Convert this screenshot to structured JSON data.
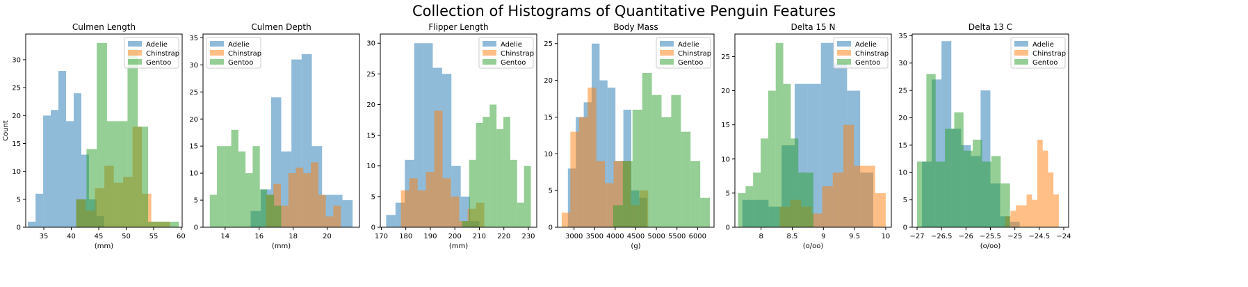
{
  "figure": {
    "suptitle": "Collection of Histograms of Quantitative Penguin Features"
  },
  "colors": {
    "Adelie": "#1f77b4",
    "Chinstrap": "#ff7f0e",
    "Gentoo": "#2ca02c"
  },
  "chart_data": [
    {
      "type": "bar",
      "title": "Culmen Length",
      "xlabel": "(mm)",
      "ylabel": "Count",
      "xlim": [
        31.7,
        60.2
      ],
      "ylim": [
        0,
        34.6
      ],
      "xticks": [
        35,
        40,
        45,
        50,
        55,
        60
      ],
      "yticks": [
        0,
        5,
        10,
        15,
        20,
        25,
        30
      ],
      "legend": "top-right",
      "series": [
        {
          "name": "Adelie",
          "range": [
            32.1,
            46.0
          ],
          "counts": [
            1,
            6,
            20,
            21,
            28,
            19,
            24,
            13,
            5,
            2
          ]
        },
        {
          "name": "Chinstrap",
          "range": [
            40.9,
            58.0
          ],
          "counts": [
            5,
            3,
            7,
            11,
            8,
            9,
            18,
            6,
            1,
            1
          ]
        },
        {
          "name": "Gentoo",
          "range": [
            40.9,
            59.6
          ],
          "counts": [
            5,
            14,
            33,
            19,
            19,
            32,
            18,
            1,
            1,
            1
          ]
        }
      ]
    },
    {
      "type": "bar",
      "title": "Culmen Depth",
      "xlabel": "(mm)",
      "ylabel": "",
      "xlim": [
        12.7,
        21.9
      ],
      "ylim": [
        0,
        35.7
      ],
      "xticks": [
        14,
        16,
        18,
        20
      ],
      "yticks": [
        0,
        5,
        10,
        15,
        20,
        25,
        30,
        35
      ],
      "legend": "top-left",
      "series": [
        {
          "name": "Adelie",
          "range": [
            15.5,
            21.5
          ],
          "counts": [
            3,
            7,
            24,
            14,
            31,
            32,
            15,
            6,
            6,
            5
          ]
        },
        {
          "name": "Chinstrap",
          "range": [
            16.4,
            20.8
          ],
          "counts": [
            6,
            8,
            4,
            10,
            11,
            10,
            12,
            6,
            2,
            4
          ]
        },
        {
          "name": "Gentoo",
          "range": [
            13.1,
            17.3
          ],
          "counts": [
            6,
            15,
            15,
            18,
            14,
            10,
            15,
            7,
            6,
            4
          ]
        }
      ]
    },
    {
      "type": "bar",
      "title": "Flipper Length",
      "xlabel": "(mm)",
      "ylabel": "",
      "xlim": [
        169.6,
        233.4
      ],
      "ylim": [
        0,
        31.5
      ],
      "xticks": [
        170,
        180,
        190,
        200,
        210,
        220,
        230
      ],
      "yticks": [
        0,
        5,
        10,
        15,
        20,
        25,
        30
      ],
      "legend": "top-right",
      "series": [
        {
          "name": "Adelie",
          "range": [
            172,
            210
          ],
          "counts": [
            2,
            4,
            11,
            30,
            30,
            26,
            25,
            10,
            5,
            1
          ]
        },
        {
          "name": "Chinstrap",
          "range": [
            178,
            212
          ],
          "counts": [
            6,
            8,
            6,
            9,
            19,
            8,
            5,
            1,
            3,
            4
          ]
        },
        {
          "name": "Gentoo",
          "range": [
            203,
            231
          ],
          "counts": [
            1,
            11,
            17,
            18,
            20,
            16,
            18,
            11,
            4,
            10
          ]
        }
      ]
    },
    {
      "type": "bar",
      "title": "Body Mass",
      "xlabel": "(g)",
      "ylabel": "",
      "xlim": [
        2600,
        6400
      ],
      "ylim": [
        0,
        26.3
      ],
      "xticks": [
        3000,
        3500,
        4000,
        4500,
        5000,
        5500,
        6000
      ],
      "yticks": [
        0,
        5,
        10,
        15,
        20,
        25
      ],
      "legend": "top-right",
      "series": [
        {
          "name": "Adelie",
          "range": [
            2850,
            4775
          ],
          "counts": [
            8,
            15,
            17,
            25,
            20,
            19,
            9,
            16,
            5,
            4
          ]
        },
        {
          "name": "Chinstrap",
          "range": [
            2700,
            4800
          ],
          "counts": [
            2,
            13,
            15,
            19,
            9,
            6,
            9,
            9,
            3,
            5
          ]
        },
        {
          "name": "Gentoo",
          "range": [
            3950,
            6300
          ],
          "counts": [
            3,
            9,
            16,
            21,
            18,
            15,
            18,
            13,
            9,
            4
          ]
        }
      ]
    },
    {
      "type": "bar",
      "title": "Delta 15 N",
      "xlabel": "(o/oo)",
      "ylabel": "",
      "xlim": [
        7.58,
        10.09
      ],
      "ylim": [
        0,
        28.3
      ],
      "xticks": [
        8.0,
        8.5,
        9.0,
        9.5,
        10.0
      ],
      "yticks": [
        0,
        5,
        10,
        15,
        20,
        25
      ],
      "legend": "top-right",
      "series": [
        {
          "name": "Adelie",
          "range": [
            7.7,
            9.8
          ],
          "counts": [
            4,
            4,
            3,
            12,
            21,
            21,
            27,
            24,
            20,
            8
          ]
        },
        {
          "name": "Chinstrap",
          "range": [
            8.3,
            10.0
          ],
          "counts": [
            3,
            4,
            3,
            2,
            6,
            8,
            15,
            9,
            9,
            5
          ]
        },
        {
          "name": "Gentoo",
          "range": [
            7.63,
            8.84
          ],
          "counts": [
            5,
            6,
            8,
            13,
            20,
            27,
            21,
            13,
            8,
            8
          ]
        }
      ]
    },
    {
      "type": "bar",
      "title": "Delta 13 C",
      "xlabel": "(o/oo)",
      "ylabel": "",
      "xlim": [
        -27.1,
        -23.9
      ],
      "ylim": [
        0,
        35.3
      ],
      "xticks": [
        -27.0,
        -26.5,
        -26.0,
        -25.5,
        -25.0,
        -24.5,
        -24.0
      ],
      "yticks": [
        0,
        5,
        10,
        15,
        20,
        25,
        30,
        35
      ],
      "legend": "top-right",
      "series": [
        {
          "name": "Adelie",
          "range": [
            -26.9,
            -24.9
          ],
          "counts": [
            12,
            27,
            34,
            18,
            15,
            13,
            25,
            8,
            2,
            1
          ]
        },
        {
          "name": "Chinstrap",
          "range": [
            -25.2,
            -24.1
          ],
          "counts": [
            2,
            3,
            4,
            4,
            6,
            5,
            16,
            14,
            10,
            6
          ]
        },
        {
          "name": "Gentoo",
          "range": [
            -27.0,
            -25.1
          ],
          "counts": [
            12,
            28,
            12,
            18,
            21,
            14,
            16,
            12,
            13,
            8
          ]
        }
      ]
    }
  ]
}
